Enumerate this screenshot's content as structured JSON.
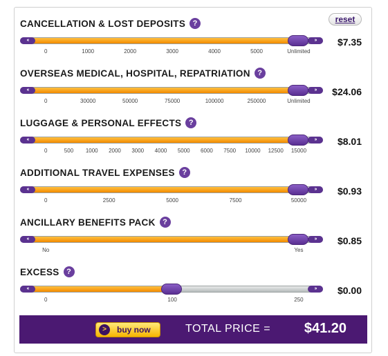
{
  "reset_label": "reset",
  "sliders": [
    {
      "title": "CANCELLATION & LOST DEPOSITS",
      "price": "$7.35",
      "ticks": [
        "0",
        "1000",
        "2000",
        "3000",
        "4000",
        "5000",
        "Unlimited"
      ],
      "value_fraction": 0.92,
      "help_icon": "?"
    },
    {
      "title": "OVERSEAS MEDICAL, HOSPITAL, REPATRIATION",
      "price": "$24.06",
      "ticks": [
        "0",
        "30000",
        "50000",
        "75000",
        "100000",
        "250000",
        "Unlimited"
      ],
      "value_fraction": 0.92,
      "help_icon": "?"
    },
    {
      "title": "LUGGAGE & PERSONAL EFFECTS",
      "price": "$8.01",
      "ticks": [
        "0",
        "500",
        "1000",
        "2000",
        "3000",
        "4000",
        "5000",
        "6000",
        "7500",
        "10000",
        "12500",
        "15000"
      ],
      "value_fraction": 0.92,
      "help_icon": "?"
    },
    {
      "title": "ADDITIONAL TRAVEL EXPENSES",
      "price": "$0.93",
      "ticks": [
        "0",
        "2500",
        "5000",
        "7500",
        "50000"
      ],
      "value_fraction": 0.92,
      "help_icon": "?"
    },
    {
      "title": "ANCILLARY BENEFITS PACK",
      "price": "$0.85",
      "ticks": [
        "No",
        "Yes"
      ],
      "value_fraction": 0.92,
      "help_icon": "?"
    },
    {
      "title": "EXCESS",
      "price": "$0.00",
      "ticks": [
        "0",
        "100",
        "250"
      ],
      "value_fraction": 0.5,
      "help_icon": "?"
    }
  ],
  "footer": {
    "buy_label": "buy now",
    "buy_icon": ">",
    "total_label": "TOTAL PRICE =",
    "total_value": "$41.20"
  },
  "colors": {
    "accent": "#4b1972",
    "fill": "#f28a00",
    "thumb": "#6a3f9e"
  }
}
